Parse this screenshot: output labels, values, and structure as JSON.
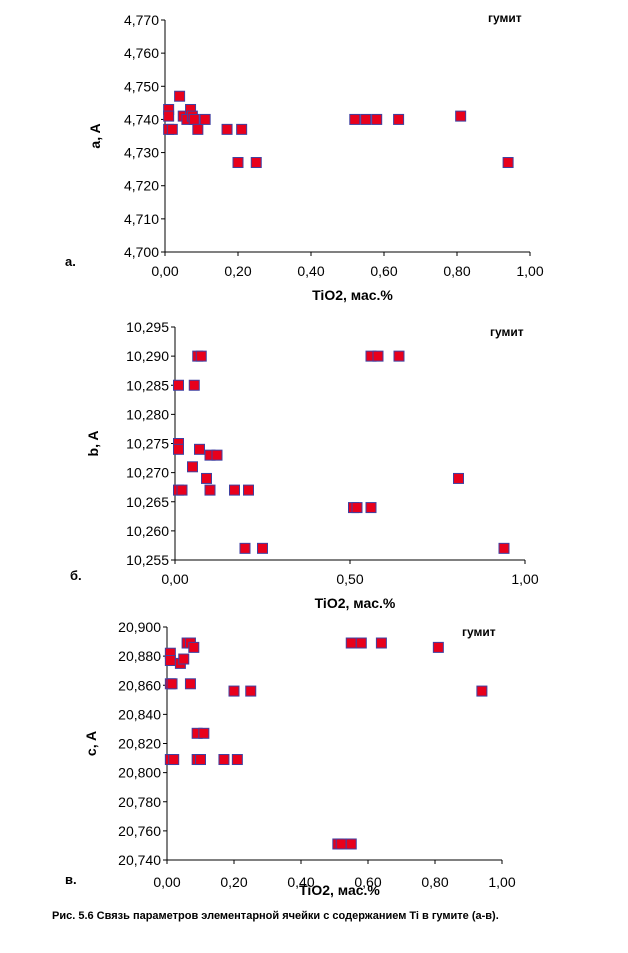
{
  "caption": "Рис. 5.6 Связь параметров  элементарной  ячейки с содержанием Ti в гумите (а-в).",
  "chart_data": [
    {
      "type": "scatter",
      "panel_label": "а.",
      "annotation": "гумит",
      "xlabel": "TiO2, мас.%",
      "ylabel": "a, A",
      "xlim": [
        0,
        1
      ],
      "ylim": [
        4.7,
        4.77
      ],
      "x_ticks": [
        "0,00",
        "0,20",
        "0,40",
        "0,60",
        "0,80",
        "1,00"
      ],
      "y_ticks": [
        "4,700",
        "4,710",
        "4,720",
        "4,730",
        "4,740",
        "4,750",
        "4,760",
        "4,770"
      ],
      "grid": false,
      "marker_color": "#e8001c",
      "marker_edge": "#4040a0",
      "points": [
        [
          0.01,
          4.743
        ],
        [
          0.01,
          4.741
        ],
        [
          0.01,
          4.737
        ],
        [
          0.02,
          4.737
        ],
        [
          0.04,
          4.747
        ],
        [
          0.05,
          4.741
        ],
        [
          0.06,
          4.74
        ],
        [
          0.07,
          4.743
        ],
        [
          0.075,
          4.741
        ],
        [
          0.08,
          4.74
        ],
        [
          0.09,
          4.737
        ],
        [
          0.11,
          4.74
        ],
        [
          0.17,
          4.737
        ],
        [
          0.2,
          4.727
        ],
        [
          0.21,
          4.737
        ],
        [
          0.25,
          4.727
        ],
        [
          0.52,
          4.74
        ],
        [
          0.55,
          4.74
        ],
        [
          0.58,
          4.74
        ],
        [
          0.64,
          4.74
        ],
        [
          0.81,
          4.741
        ],
        [
          0.94,
          4.727
        ]
      ]
    },
    {
      "type": "scatter",
      "panel_label": "б.",
      "annotation": "гумит",
      "xlabel": "TiO2, мас.%",
      "ylabel": "b, A",
      "xlim": [
        0,
        1
      ],
      "ylim": [
        10.255,
        10.295
      ],
      "x_ticks": [
        "0,00",
        "0,50",
        "1,00"
      ],
      "y_ticks": [
        "10,255",
        "10,260",
        "10,265",
        "10,270",
        "10,275",
        "10,280",
        "10,285",
        "10,290",
        "10,295"
      ],
      "grid": false,
      "marker_color": "#e8001c",
      "marker_edge": "#4040a0",
      "points": [
        [
          0.01,
          10.285
        ],
        [
          0.01,
          10.275
        ],
        [
          0.01,
          10.274
        ],
        [
          0.01,
          10.267
        ],
        [
          0.02,
          10.267
        ],
        [
          0.05,
          10.271
        ],
        [
          0.055,
          10.285
        ],
        [
          0.065,
          10.29
        ],
        [
          0.075,
          10.29
        ],
        [
          0.07,
          10.274
        ],
        [
          0.09,
          10.269
        ],
        [
          0.1,
          10.273
        ],
        [
          0.1,
          10.267
        ],
        [
          0.12,
          10.273
        ],
        [
          0.17,
          10.267
        ],
        [
          0.2,
          10.257
        ],
        [
          0.21,
          10.267
        ],
        [
          0.25,
          10.257
        ],
        [
          0.51,
          10.264
        ],
        [
          0.52,
          10.264
        ],
        [
          0.56,
          10.264
        ],
        [
          0.56,
          10.29
        ],
        [
          0.58,
          10.29
        ],
        [
          0.64,
          10.29
        ],
        [
          0.81,
          10.269
        ],
        [
          0.94,
          10.257
        ]
      ]
    },
    {
      "type": "scatter",
      "panel_label": "в.",
      "annotation": "гумит",
      "xlabel": "TiO2, мас.%",
      "ylabel": "c, A",
      "xlim": [
        0,
        1
      ],
      "ylim": [
        20.74,
        20.9
      ],
      "x_ticks": [
        "0,00",
        "0,20",
        "0,40",
        "0,60",
        "0,80",
        "1,00"
      ],
      "y_ticks": [
        "20,740",
        "20,760",
        "20,780",
        "20,800",
        "20,820",
        "20,840",
        "20,860",
        "20,880",
        "20,900"
      ],
      "grid": false,
      "marker_color": "#e8001c",
      "marker_edge": "#4040a0",
      "points": [
        [
          0.01,
          20.882
        ],
        [
          0.01,
          20.877
        ],
        [
          0.01,
          20.861
        ],
        [
          0.015,
          20.861
        ],
        [
          0.01,
          20.809
        ],
        [
          0.02,
          20.809
        ],
        [
          0.04,
          20.875
        ],
        [
          0.05,
          20.878
        ],
        [
          0.06,
          20.889
        ],
        [
          0.07,
          20.889
        ],
        [
          0.07,
          20.861
        ],
        [
          0.08,
          20.886
        ],
        [
          0.09,
          20.827
        ],
        [
          0.09,
          20.809
        ],
        [
          0.1,
          20.809
        ],
        [
          0.11,
          20.827
        ],
        [
          0.17,
          20.809
        ],
        [
          0.2,
          20.856
        ],
        [
          0.21,
          20.809
        ],
        [
          0.25,
          20.856
        ],
        [
          0.51,
          20.751
        ],
        [
          0.52,
          20.751
        ],
        [
          0.55,
          20.889
        ],
        [
          0.55,
          20.751
        ],
        [
          0.58,
          20.889
        ],
        [
          0.64,
          20.889
        ],
        [
          0.81,
          20.886
        ],
        [
          0.94,
          20.856
        ]
      ]
    }
  ]
}
